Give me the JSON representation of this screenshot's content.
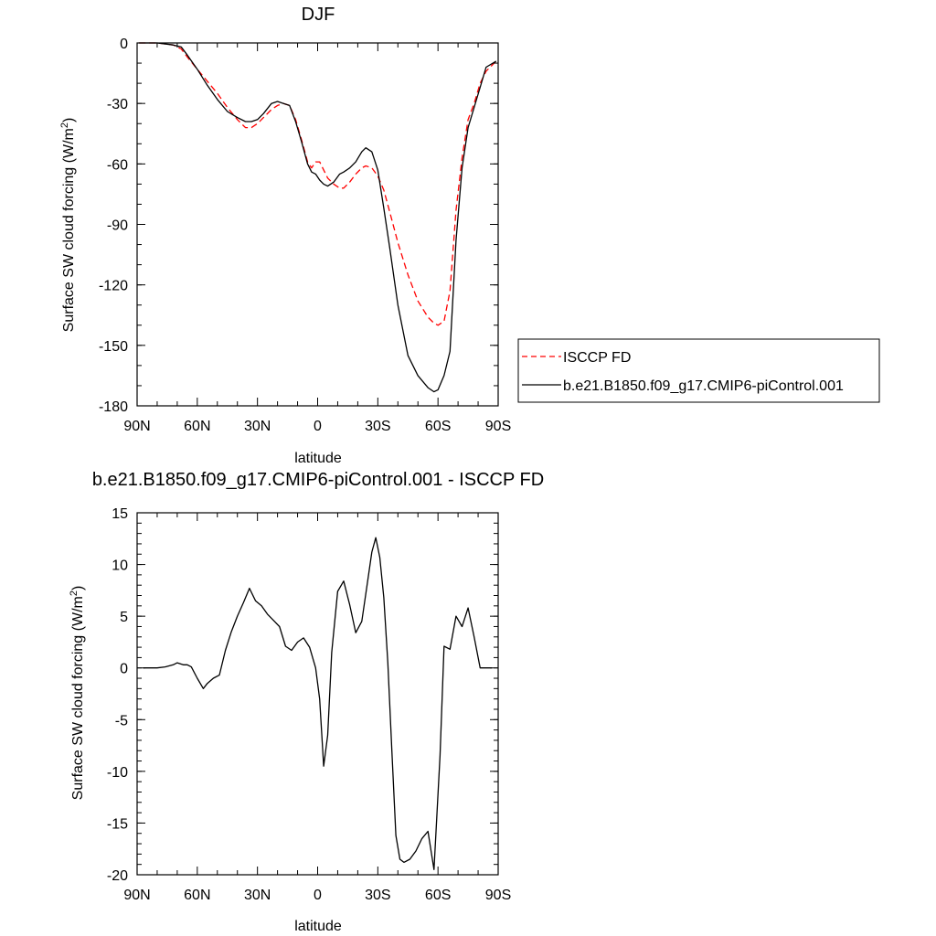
{
  "chart_data": [
    {
      "type": "line",
      "title": "DJF",
      "xlabel": "latitude",
      "ylabel": "Surface SW cloud forcing (W/m",
      "ylabel_sup": "2",
      "ylabel_close": ")",
      "xlim": [
        90,
        -90
      ],
      "ylim": [
        -180,
        0
      ],
      "x_ticks": [
        90,
        60,
        30,
        0,
        -30,
        -60,
        -90
      ],
      "x_tick_labels": [
        "90N",
        "60N",
        "30N",
        "0",
        "30S",
        "60S",
        "90S"
      ],
      "y_ticks": [
        0,
        -30,
        -60,
        -90,
        -120,
        -150,
        -180
      ],
      "y_tick_labels": [
        "0",
        "-30",
        "-60",
        "-90",
        "-120",
        "-150",
        "-180"
      ],
      "legend_position": "right",
      "series": [
        {
          "name": "ISCCP FD",
          "color": "#ff0000",
          "style": "dashed",
          "x": [
            89,
            80,
            72,
            68,
            65,
            60,
            55,
            50,
            45,
            40,
            36,
            33,
            30,
            27,
            23,
            20,
            17,
            14,
            11,
            8,
            5,
            3,
            1,
            -1,
            -3,
            -5,
            -8,
            -11,
            -13,
            -16,
            -19,
            -22,
            -24,
            -27,
            -30,
            -33,
            -36,
            -40,
            -45,
            -50,
            -55,
            -58,
            -60,
            -63,
            -66,
            -69,
            -72,
            -75,
            -78,
            -81,
            -84,
            -89
          ],
          "y": [
            0,
            0,
            -1,
            -3,
            -7,
            -13,
            -19,
            -25,
            -32,
            -38,
            -42,
            -42,
            -40,
            -37,
            -33,
            -31,
            -30,
            -31,
            -38,
            -48,
            -59,
            -62,
            -59,
            -59,
            -63,
            -67,
            -70,
            -72,
            -72,
            -69,
            -65,
            -62,
            -61,
            -62,
            -66,
            -73,
            -84,
            -99,
            -115,
            -128,
            -136,
            -139,
            -140,
            -138,
            -123,
            -83,
            -57,
            -38,
            -30,
            -20,
            -14,
            -9
          ]
        },
        {
          "name": "b.e21.B1850.f09_g17.CMIP6-piControl.001",
          "color": "#000000",
          "style": "solid",
          "x": [
            89,
            80,
            72,
            68,
            65,
            60,
            55,
            50,
            45,
            40,
            36,
            33,
            30,
            27,
            23,
            20,
            17,
            14,
            11,
            8,
            5,
            3,
            1,
            -1,
            -3,
            -5,
            -8,
            -11,
            -13,
            -16,
            -19,
            -22,
            -24,
            -27,
            -30,
            -33,
            -36,
            -40,
            -45,
            -50,
            -55,
            -58,
            -60,
            -63,
            -66,
            -69,
            -72,
            -75,
            -78,
            -81,
            -84,
            -89
          ],
          "y": [
            0,
            0,
            -1,
            -2,
            -6,
            -13,
            -21,
            -28,
            -34,
            -37,
            -39,
            -39,
            -38,
            -35,
            -30,
            -29,
            -30,
            -31,
            -39,
            -49,
            -60,
            -64,
            -65,
            -68,
            -70,
            -71,
            -69,
            -65,
            -64,
            -62,
            -59,
            -54,
            -52,
            -54,
            -63,
            -82,
            -102,
            -130,
            -155,
            -165,
            -171,
            -173,
            -172,
            -165,
            -153,
            -98,
            -62,
            -42,
            -32,
            -22,
            -12,
            -9
          ]
        }
      ]
    },
    {
      "type": "line",
      "title": "b.e21.B1850.f09_g17.CMIP6-piControl.001 - ISCCP FD",
      "xlabel": "latitude",
      "ylabel": "Surface SW cloud forcing (W/m",
      "ylabel_sup": "2",
      "ylabel_close": ")",
      "xlim": [
        90,
        -90
      ],
      "ylim": [
        -20,
        15
      ],
      "x_ticks": [
        90,
        60,
        30,
        0,
        -30,
        -60,
        -90
      ],
      "x_tick_labels": [
        "90N",
        "60N",
        "30N",
        "0",
        "30S",
        "60S",
        "90S"
      ],
      "y_ticks": [
        15,
        10,
        5,
        0,
        -5,
        -10,
        -15,
        -20
      ],
      "y_tick_labels": [
        "15",
        "10",
        "5",
        "0",
        "-5",
        "-10",
        "-15",
        "-20"
      ],
      "series": [
        {
          "color": "#000000",
          "style": "solid",
          "x": [
            87,
            80,
            76,
            72,
            70,
            67,
            65,
            63,
            60,
            57,
            55,
            52,
            49,
            46,
            43,
            40,
            37,
            34,
            31,
            28,
            25,
            22,
            19,
            16,
            13,
            10,
            7,
            4,
            1,
            -1,
            -3,
            -5,
            -7,
            -10,
            -13,
            -16,
            -19,
            -22,
            -25,
            -27,
            -29,
            -31,
            -33,
            -35,
            -37,
            -39,
            -41,
            -43,
            -46,
            -49,
            -52,
            -55,
            -58,
            -61,
            -63,
            -66,
            -69,
            -72,
            -75,
            -78,
            -81,
            -84,
            -87
          ],
          "y": [
            0,
            0,
            0.1,
            0.3,
            0.5,
            0.3,
            0.3,
            0.1,
            -1,
            -2,
            -1.5,
            -1,
            -0.7,
            1.7,
            3.5,
            5,
            6.3,
            7.7,
            6.5,
            6,
            5.2,
            4.6,
            4,
            2.1,
            1.7,
            2.5,
            2.9,
            2,
            0,
            -3,
            -9.5,
            -6.5,
            1.5,
            7.4,
            8.4,
            6.1,
            3.4,
            4.5,
            8.5,
            11.2,
            12.6,
            10.7,
            6.8,
            0.5,
            -8,
            -16.2,
            -18.5,
            -18.8,
            -18.5,
            -17.7,
            -16.5,
            -15.8,
            -19.5,
            -8.5,
            2.1,
            1.8,
            5,
            4,
            5.8,
            3,
            0,
            0,
            0
          ]
        }
      ]
    }
  ]
}
